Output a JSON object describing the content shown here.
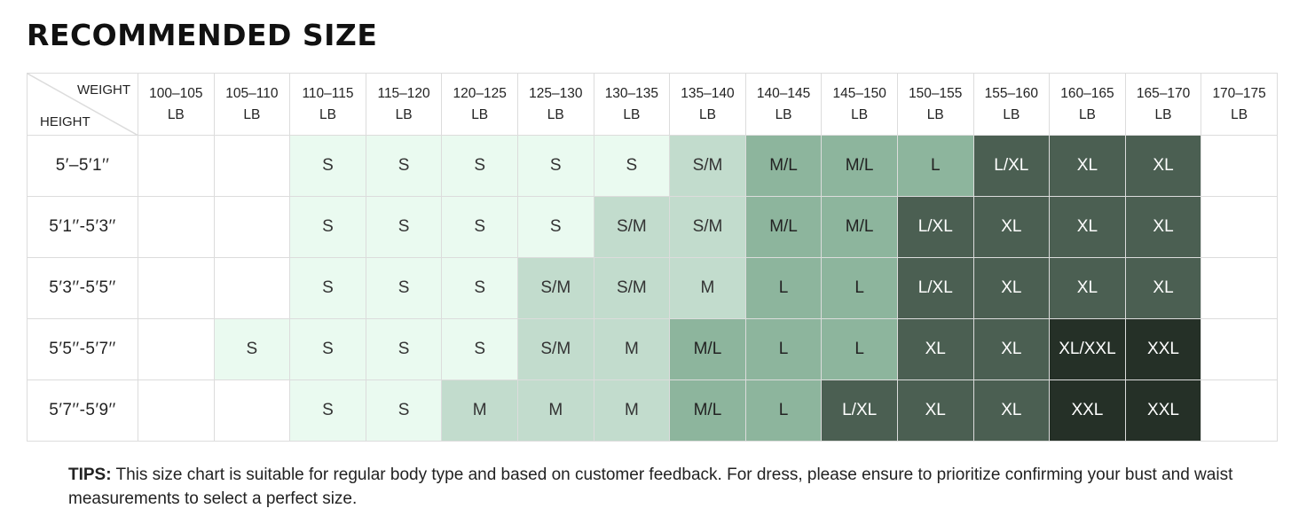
{
  "title": "RECOMMENDED SIZE",
  "corner": {
    "weight": "WEIGHT",
    "height": "HEIGHT"
  },
  "weights": [
    [
      "100–105",
      "LB"
    ],
    [
      "105–110",
      "LB"
    ],
    [
      "110–115",
      "LB"
    ],
    [
      "115–120",
      "LB"
    ],
    [
      "120–125",
      "LB"
    ],
    [
      "125–130",
      "LB"
    ],
    [
      "130–135",
      "LB"
    ],
    [
      "135–140",
      "LB"
    ],
    [
      "140–145",
      "LB"
    ],
    [
      "145–150",
      "LB"
    ],
    [
      "150–155",
      "LB"
    ],
    [
      "155–160",
      "LB"
    ],
    [
      "160–165",
      "LB"
    ],
    [
      "165–170",
      "LB"
    ],
    [
      "170–175",
      "LB"
    ]
  ],
  "rows": [
    {
      "height": "5′–5′1′′",
      "sizes": [
        "",
        "",
        "S",
        "S",
        "S",
        "S",
        "S",
        "S/M",
        "M/L",
        "M/L",
        "L",
        "L/XL",
        "XL",
        "XL",
        ""
      ],
      "shades": [
        0,
        0,
        1,
        1,
        1,
        1,
        1,
        2,
        3,
        3,
        3,
        4,
        4,
        4,
        0
      ]
    },
    {
      "height": "5′1′′-5′3′′",
      "sizes": [
        "",
        "",
        "S",
        "S",
        "S",
        "S",
        "S/M",
        "S/M",
        "M/L",
        "M/L",
        "L/XL",
        "XL",
        "XL",
        "XL",
        ""
      ],
      "shades": [
        0,
        0,
        1,
        1,
        1,
        1,
        2,
        2,
        3,
        3,
        4,
        4,
        4,
        4,
        0
      ]
    },
    {
      "height": "5′3′′-5′5′′",
      "sizes": [
        "",
        "",
        "S",
        "S",
        "S",
        "S/M",
        "S/M",
        "M",
        "L",
        "L",
        "L/XL",
        "XL",
        "XL",
        "XL",
        ""
      ],
      "shades": [
        0,
        0,
        1,
        1,
        1,
        2,
        2,
        2,
        3,
        3,
        4,
        4,
        4,
        4,
        0
      ]
    },
    {
      "height": "5′5′′-5′7′′",
      "sizes": [
        "",
        "S",
        "S",
        "S",
        "S",
        "S/M",
        "M",
        "M/L",
        "L",
        "L",
        "XL",
        "XL",
        "XL/XXL",
        "XXL",
        ""
      ],
      "shades": [
        0,
        1,
        1,
        1,
        1,
        2,
        2,
        3,
        3,
        3,
        4,
        4,
        5,
        5,
        0
      ]
    },
    {
      "height": "5′7′′-5′9′′",
      "sizes": [
        "",
        "",
        "S",
        "S",
        "M",
        "M",
        "M",
        "M/L",
        "L",
        "L/XL",
        "XL",
        "XL",
        "XXL",
        "XXL",
        ""
      ],
      "shades": [
        0,
        0,
        1,
        1,
        2,
        2,
        2,
        3,
        3,
        4,
        4,
        4,
        5,
        5,
        0
      ]
    }
  ],
  "tips": {
    "label": "TIPS:",
    "text": " This size chart is suitable for regular body type and based on customer feedback. For dress, please ensure to prioritize confirming your bust and waist measurements to select a perfect size."
  }
}
